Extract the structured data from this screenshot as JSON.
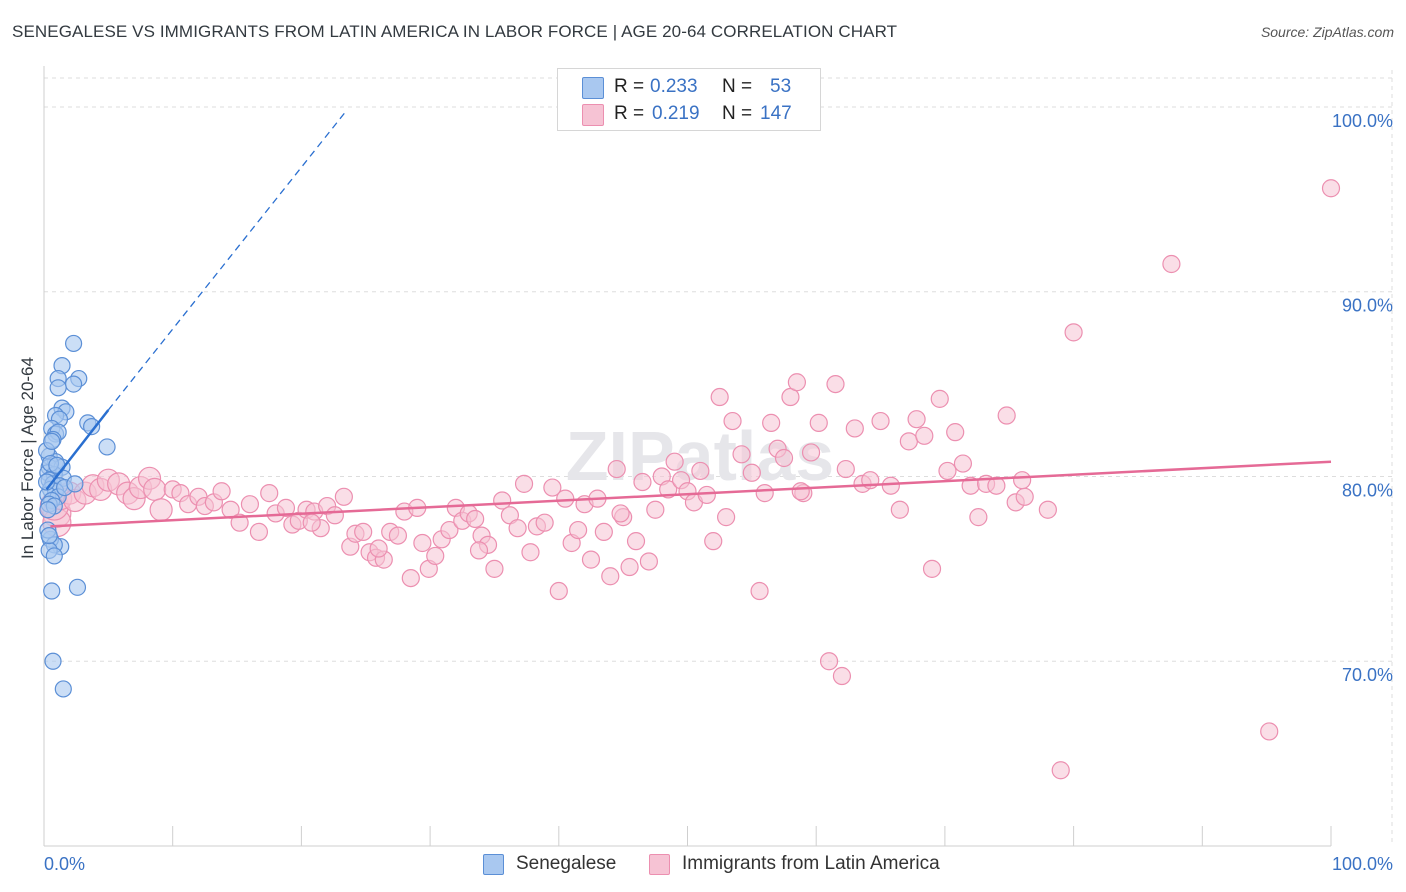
{
  "title": "SENEGALESE VS IMMIGRANTS FROM LATIN AMERICA IN LABOR FORCE | AGE 20-64 CORRELATION CHART",
  "source": "Source: ZipAtlas.com",
  "watermark": "ZIPatlas",
  "legend": {
    "series1": {
      "r_label": "R =",
      "r_value": "0.233",
      "n_label": "N =",
      "n_value": "53"
    },
    "series2": {
      "r_label": "R =",
      "r_value": "0.219",
      "n_label": "N =",
      "n_value": "147"
    }
  },
  "bottom_legend": [
    "Senegalese",
    "Immigrants from Latin America"
  ],
  "colors": {
    "blue_fill": "#a9c8f0",
    "blue_stroke": "#5b8fd6",
    "blue_line": "#2a6fd0",
    "pink_fill": "#f6c3d4",
    "pink_stroke": "#ec8fb0",
    "pink_line": "#e56a96",
    "axis_text": "#3a72c4",
    "grid": "#dddddd"
  },
  "chart_data": {
    "type": "scatter",
    "title": "SENEGALESE VS IMMIGRANTS FROM LATIN AMERICA IN LABOR FORCE | AGE 20-64 CORRELATION CHART",
    "xlabel": "",
    "ylabel": "In Labor Force | Age 20-64",
    "xlim": [
      0,
      100
    ],
    "ylim": [
      60,
      102
    ],
    "x_tick_labels": [
      "0.0%",
      "100.0%"
    ],
    "y_ticks": [
      70,
      80,
      90,
      100
    ],
    "y_tick_labels": [
      "70.0%",
      "80.0%",
      "90.0%",
      "100.0%"
    ],
    "series": [
      {
        "name": "Senegalese",
        "R": 0.233,
        "N": 53,
        "trend": {
          "x": [
            0.2,
            5.0
          ],
          "y": [
            79.3,
            83.6
          ],
          "dashed_to": {
            "x": 23.5,
            "y": 99.8
          }
        },
        "points": [
          [
            2.3,
            87.2
          ],
          [
            1.4,
            86.0
          ],
          [
            1.1,
            85.3
          ],
          [
            2.7,
            85.3
          ],
          [
            2.3,
            85.0
          ],
          [
            1.1,
            84.8
          ],
          [
            1.4,
            83.7
          ],
          [
            1.7,
            83.5
          ],
          [
            0.9,
            83.3
          ],
          [
            1.2,
            83.1
          ],
          [
            3.4,
            82.9
          ],
          [
            3.7,
            82.7
          ],
          [
            0.6,
            82.6
          ],
          [
            0.9,
            82.3
          ],
          [
            1.1,
            82.4
          ],
          [
            0.7,
            82.0
          ],
          [
            4.9,
            81.6
          ],
          [
            0.4,
            81.1
          ],
          [
            0.9,
            80.8
          ],
          [
            0.4,
            80.5
          ],
          [
            1.4,
            80.5
          ],
          [
            0.3,
            80.2
          ],
          [
            0.8,
            80.1
          ],
          [
            1.5,
            79.9
          ],
          [
            0.4,
            79.8
          ],
          [
            0.7,
            79.6
          ],
          [
            1.2,
            79.5
          ],
          [
            0.5,
            79.3
          ],
          [
            0.9,
            79.2
          ],
          [
            0.3,
            79.0
          ],
          [
            1.1,
            78.9
          ],
          [
            0.6,
            78.7
          ],
          [
            0.4,
            78.5
          ],
          [
            0.8,
            78.4
          ],
          [
            1.6,
            79.4
          ],
          [
            2.4,
            79.6
          ],
          [
            0.3,
            78.2
          ],
          [
            1.3,
            76.2
          ],
          [
            0.5,
            76.6
          ],
          [
            0.8,
            76.3
          ],
          [
            0.4,
            76.0
          ],
          [
            0.8,
            75.7
          ],
          [
            0.6,
            73.8
          ],
          [
            2.6,
            74.0
          ],
          [
            0.7,
            70.0
          ],
          [
            1.5,
            68.5
          ],
          [
            0.2,
            81.4
          ],
          [
            0.2,
            79.7
          ],
          [
            0.5,
            80.7
          ],
          [
            0.3,
            77.1
          ],
          [
            1.0,
            80.6
          ],
          [
            0.6,
            81.9
          ],
          [
            0.4,
            76.8
          ]
        ]
      },
      {
        "name": "Immigrants from Latin America",
        "R": 0.219,
        "N": 147,
        "trend": {
          "x": [
            0.5,
            100
          ],
          "y": [
            77.3,
            80.8
          ]
        },
        "points": [
          [
            1.0,
            78.0
          ],
          [
            1.0,
            77.5
          ],
          [
            0.8,
            78.4
          ],
          [
            1.3,
            78.8
          ],
          [
            2.0,
            79.1
          ],
          [
            2.4,
            78.7
          ],
          [
            3.2,
            79.1
          ],
          [
            3.8,
            79.5
          ],
          [
            4.4,
            79.3
          ],
          [
            5.0,
            79.8
          ],
          [
            5.8,
            79.6
          ],
          [
            6.5,
            79.1
          ],
          [
            7.0,
            78.8
          ],
          [
            7.5,
            79.4
          ],
          [
            8.2,
            79.9
          ],
          [
            8.6,
            79.3
          ],
          [
            9.1,
            78.2
          ],
          [
            10.0,
            79.3
          ],
          [
            10.6,
            79.1
          ],
          [
            11.2,
            78.5
          ],
          [
            12.0,
            78.9
          ],
          [
            12.5,
            78.4
          ],
          [
            13.2,
            78.6
          ],
          [
            13.8,
            79.2
          ],
          [
            14.5,
            78.2
          ],
          [
            15.2,
            77.5
          ],
          [
            16.0,
            78.5
          ],
          [
            16.7,
            77.0
          ],
          [
            17.5,
            79.1
          ],
          [
            18.0,
            78.0
          ],
          [
            18.8,
            78.3
          ],
          [
            19.3,
            77.4
          ],
          [
            19.8,
            77.6
          ],
          [
            20.4,
            78.2
          ],
          [
            21.0,
            78.1
          ],
          [
            21.5,
            77.2
          ],
          [
            22.0,
            78.4
          ],
          [
            22.6,
            77.9
          ],
          [
            23.3,
            78.9
          ],
          [
            23.8,
            76.2
          ],
          [
            24.2,
            76.9
          ],
          [
            24.8,
            77.0
          ],
          [
            25.3,
            75.9
          ],
          [
            25.8,
            75.6
          ],
          [
            26.4,
            75.5
          ],
          [
            26.9,
            77.0
          ],
          [
            27.5,
            76.8
          ],
          [
            28.0,
            78.1
          ],
          [
            28.5,
            74.5
          ],
          [
            29.0,
            78.3
          ],
          [
            29.4,
            76.4
          ],
          [
            29.9,
            75.0
          ],
          [
            30.4,
            75.7
          ],
          [
            30.9,
            76.6
          ],
          [
            31.5,
            77.1
          ],
          [
            32.0,
            78.3
          ],
          [
            32.5,
            77.6
          ],
          [
            33.0,
            78.0
          ],
          [
            33.5,
            77.7
          ],
          [
            34.0,
            76.8
          ],
          [
            34.5,
            76.3
          ],
          [
            35.0,
            75.0
          ],
          [
            35.6,
            78.7
          ],
          [
            36.2,
            77.9
          ],
          [
            36.8,
            77.2
          ],
          [
            37.3,
            79.6
          ],
          [
            37.8,
            75.9
          ],
          [
            38.3,
            77.3
          ],
          [
            38.9,
            77.5
          ],
          [
            39.5,
            79.4
          ],
          [
            40.0,
            73.8
          ],
          [
            40.5,
            78.8
          ],
          [
            41.0,
            76.4
          ],
          [
            41.5,
            77.1
          ],
          [
            42.0,
            78.5
          ],
          [
            42.5,
            75.5
          ],
          [
            43.0,
            78.8
          ],
          [
            43.5,
            77.0
          ],
          [
            44.0,
            74.6
          ],
          [
            44.5,
            80.4
          ],
          [
            45.0,
            77.8
          ],
          [
            45.5,
            75.1
          ],
          [
            46.0,
            76.5
          ],
          [
            46.5,
            79.7
          ],
          [
            47.0,
            75.4
          ],
          [
            47.5,
            78.2
          ],
          [
            48.0,
            80.0
          ],
          [
            48.5,
            79.3
          ],
          [
            49.0,
            80.8
          ],
          [
            49.5,
            79.8
          ],
          [
            50.0,
            79.2
          ],
          [
            50.5,
            78.6
          ],
          [
            51.0,
            80.3
          ],
          [
            51.5,
            79.0
          ],
          [
            52.0,
            76.5
          ],
          [
            52.5,
            84.3
          ],
          [
            53.0,
            77.8
          ],
          [
            53.5,
            83.0
          ],
          [
            54.2,
            81.2
          ],
          [
            55.0,
            80.2
          ],
          [
            55.6,
            73.8
          ],
          [
            56.0,
            79.1
          ],
          [
            56.5,
            82.9
          ],
          [
            57.0,
            81.5
          ],
          [
            57.5,
            81.0
          ],
          [
            58.0,
            84.3
          ],
          [
            58.5,
            85.1
          ],
          [
            59.0,
            79.1
          ],
          [
            59.6,
            81.3
          ],
          [
            60.2,
            82.9
          ],
          [
            61.0,
            70.0
          ],
          [
            62.0,
            69.2
          ],
          [
            61.5,
            85.0
          ],
          [
            62.3,
            80.4
          ],
          [
            63.0,
            82.6
          ],
          [
            63.6,
            79.6
          ],
          [
            64.2,
            79.8
          ],
          [
            65.0,
            83.0
          ],
          [
            65.8,
            79.5
          ],
          [
            66.5,
            78.2
          ],
          [
            67.2,
            81.9
          ],
          [
            67.8,
            83.1
          ],
          [
            68.4,
            82.2
          ],
          [
            69.0,
            75.0
          ],
          [
            69.6,
            84.2
          ],
          [
            70.2,
            80.3
          ],
          [
            70.8,
            82.4
          ],
          [
            71.4,
            80.7
          ],
          [
            72.0,
            79.5
          ],
          [
            72.6,
            77.8
          ],
          [
            73.2,
            79.6
          ],
          [
            74.0,
            79.5
          ],
          [
            74.8,
            83.3
          ],
          [
            75.5,
            78.6
          ],
          [
            76.2,
            78.9
          ],
          [
            78.0,
            78.2
          ],
          [
            79.0,
            64.1
          ],
          [
            80.0,
            87.8
          ],
          [
            87.6,
            91.5
          ],
          [
            95.2,
            66.2
          ],
          [
            100.0,
            95.6
          ],
          [
            76.0,
            79.8
          ],
          [
            33.8,
            76.0
          ],
          [
            20.8,
            77.5
          ],
          [
            26.0,
            76.1
          ],
          [
            44.8,
            78.0
          ],
          [
            58.8,
            79.2
          ]
        ]
      }
    ]
  }
}
